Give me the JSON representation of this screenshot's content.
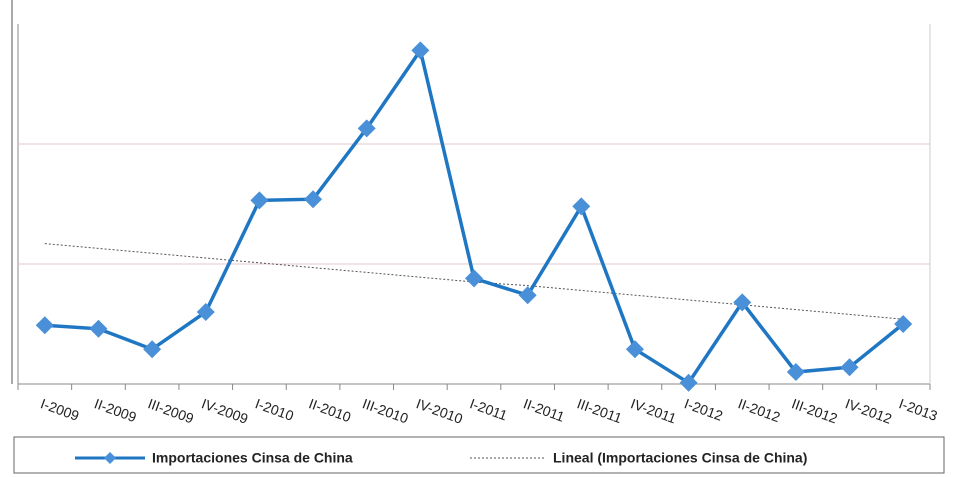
{
  "chart_data": {
    "type": "line",
    "categories": [
      "I-2009",
      "II-2009",
      "III-2009",
      "IV-2009",
      "I-2010",
      "II-2010",
      "III-2010",
      "IV-2010",
      "I-2011",
      "II-2011",
      "III-2011",
      "IV-2011",
      "I-2012",
      "II-2012",
      "III-2012",
      "IV-2012",
      "I-2013"
    ],
    "series": [
      {
        "name": "Importaciones Cinsa de China",
        "color": "#1f77c4",
        "values": [
          0.49,
          0.46,
          0.29,
          0.6,
          1.53,
          1.54,
          2.13,
          2.78,
          0.88,
          0.74,
          1.48,
          0.29,
          0.01,
          0.68,
          0.1,
          0.14,
          0.5
        ]
      },
      {
        "name": "Lineal (Importaciones Cinsa de China)",
        "color": "#555555",
        "values": [
          1.17,
          1.13,
          1.09,
          1.05,
          1.01,
          0.97,
          0.93,
          0.89,
          0.85,
          0.82,
          0.78,
          0.74,
          0.7,
          0.66,
          0.62,
          0.58,
          0.54
        ]
      }
    ],
    "ylim": [
      0,
      3
    ],
    "yticks": [
      1,
      2
    ],
    "grid": true
  }
}
